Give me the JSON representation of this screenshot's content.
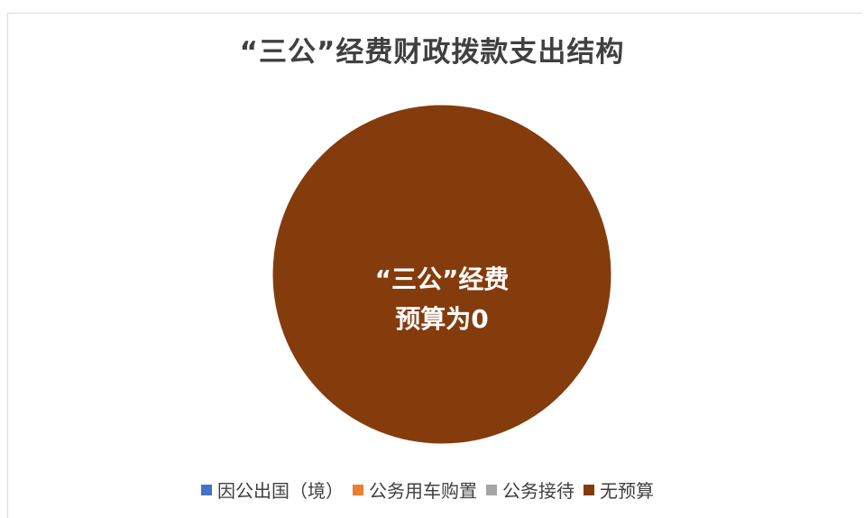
{
  "chart_data": {
    "type": "pie",
    "title": "“三公”经费财政拨款支出结构",
    "categories": [
      "因公出国（境）",
      "公务用车购置",
      "公务接待",
      "无预算"
    ],
    "values": [
      0,
      0,
      0,
      1
    ],
    "colors": [
      "#4472c4",
      "#ed7d31",
      "#a5a5a5",
      "#843c0c"
    ],
    "annotation": [
      "“三公”经费",
      "预算为0"
    ],
    "legend_position": "bottom"
  }
}
